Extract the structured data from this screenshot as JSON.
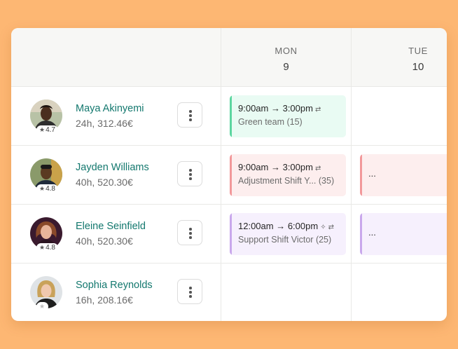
{
  "days": [
    {
      "name": "MON",
      "num": "9"
    },
    {
      "name": "TUE",
      "num": "10"
    }
  ],
  "employees": [
    {
      "name": "Maya Akinyemi",
      "hours": "24h, 312.46€",
      "rating": "4.7"
    },
    {
      "name": "Jayden Williams",
      "hours": "40h, 520.30€",
      "rating": "4.8"
    },
    {
      "name": "Eleine Seinfield",
      "hours": "40h, 520.30€",
      "rating": "4.8"
    },
    {
      "name": "Sophia Reynolds",
      "hours": "16h, 208.16€",
      "rating": ""
    }
  ],
  "shifts": [
    {
      "time": "9:00am → 3:00pm",
      "sub": "Green team (15)",
      "repeat_icon": "⇄",
      "color": "#5cd6a0",
      "bg": "#e9fbf3"
    },
    {
      "time": "9:00am → 3:00pm",
      "sub": "Adjustment Shift Y... (35)",
      "repeat_icon": "⇄",
      "color": "#f2989a",
      "bg": "#fdeeee"
    },
    {
      "time": "12:00am → 6:00pm",
      "sub": "Support Shift Victor (25)",
      "night_icon": "✧",
      "repeat_icon": "⇄",
      "color": "#c9a8ec",
      "bg": "#f6f0fd"
    },
    {
      "more": "..."
    },
    {
      "more": "..."
    }
  ],
  "icons": {
    "star": "star-icon",
    "menu": "more-vertical-icon",
    "repeat": "repeat-icon",
    "night": "sparkle-icon"
  },
  "colors": {
    "background": "#fdb773",
    "name_text": "#13786e"
  }
}
